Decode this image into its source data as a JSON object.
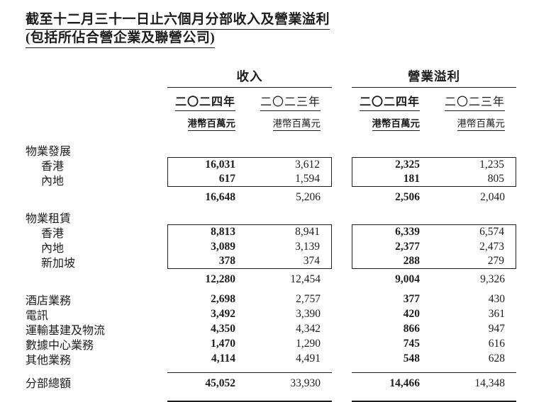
{
  "title": {
    "line1": "截至十二月三十一日止六個月分部收入及營業溢利",
    "line2": "(包括所佔合營企業及聯營公司)"
  },
  "columns": {
    "revenue_group": "收入",
    "profit_group": "營業溢利",
    "year_2024": "二〇二四年",
    "year_2023": "二〇二三年",
    "unit_2024": "港幣百萬元",
    "unit_2023": "港幣百萬元"
  },
  "rows": [
    {
      "label": "物業發展",
      "r24": "",
      "r23": "",
      "p24": "",
      "p23": ""
    },
    {
      "label": "香港",
      "r24": "16,031",
      "r23": "3,612",
      "p24": "2,325",
      "p23": "1,235"
    },
    {
      "label": "內地",
      "r24": "617",
      "r23": "1,594",
      "p24": "181",
      "p23": "805"
    },
    {
      "label": "",
      "r24": "16,648",
      "r23": "5,206",
      "p24": "2,506",
      "p23": "2,040"
    },
    {
      "label": "物業租賃",
      "r24": "",
      "r23": "",
      "p24": "",
      "p23": ""
    },
    {
      "label": "香港",
      "r24": "8,813",
      "r23": "8,941",
      "p24": "6,339",
      "p23": "6,574"
    },
    {
      "label": "內地",
      "r24": "3,089",
      "r23": "3,139",
      "p24": "2,377",
      "p23": "2,473"
    },
    {
      "label": "新加坡",
      "r24": "378",
      "r23": "374",
      "p24": "288",
      "p23": "279"
    },
    {
      "label": "",
      "r24": "12,280",
      "r23": "12,454",
      "p24": "9,004",
      "p23": "9,326"
    },
    {
      "label": "酒店業務",
      "r24": "2,698",
      "r23": "2,757",
      "p24": "377",
      "p23": "430"
    },
    {
      "label": "電訊",
      "r24": "3,492",
      "r23": "3,390",
      "p24": "420",
      "p23": "361"
    },
    {
      "label": "運輸基建及物流",
      "r24": "4,350",
      "r23": "4,342",
      "p24": "866",
      "p23": "947"
    },
    {
      "label": "數據中心業務",
      "r24": "1,470",
      "r23": "1,290",
      "p24": "745",
      "p23": "616"
    },
    {
      "label": "其他業務",
      "r24": "4,114",
      "r23": "4,491",
      "p24": "548",
      "p23": "628"
    },
    {
      "label": "分部總額",
      "r24": "45,052",
      "r23": "33,930",
      "p24": "14,466",
      "p23": "14,348"
    }
  ]
}
